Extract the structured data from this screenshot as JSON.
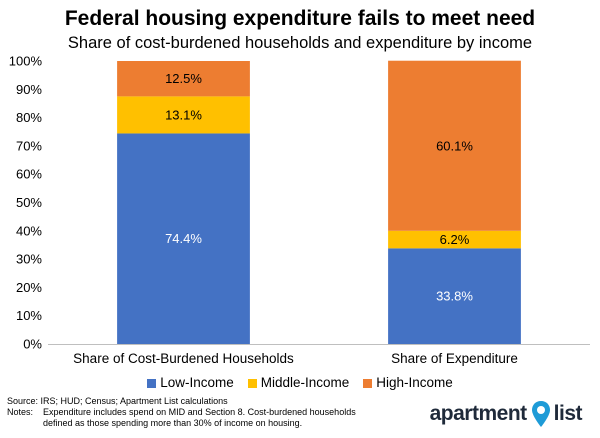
{
  "header": {
    "title": "Federal housing expenditure fails to meet need",
    "subtitle": "Share of cost-burdened households and expenditure by income"
  },
  "chart_data": {
    "type": "bar",
    "stacked": true,
    "categories": [
      "Share of Cost-Burdened Households",
      "Share of Expenditure"
    ],
    "series": [
      {
        "name": "Low-Income",
        "color": "#4472C4",
        "values": [
          74.4,
          33.8
        ],
        "labels": [
          "74.4%",
          "33.8%"
        ]
      },
      {
        "name": "Middle-Income",
        "color": "#FFC000",
        "values": [
          13.1,
          6.2
        ],
        "labels": [
          "13.1%",
          "6.2%"
        ]
      },
      {
        "name": "High-Income",
        "color": "#ED7D31",
        "values": [
          12.5,
          60.1
        ],
        "labels": [
          "12.5%",
          "60.1%"
        ]
      }
    ],
    "yticks": [
      "0%",
      "10%",
      "20%",
      "30%",
      "40%",
      "50%",
      "60%",
      "70%",
      "80%",
      "90%",
      "100%"
    ],
    "ylim": [
      0,
      100
    ],
    "legend_position": "bottom"
  },
  "legend": {
    "items": [
      {
        "label": "Low-Income",
        "color": "#4472C4"
      },
      {
        "label": "Middle-Income",
        "color": "#FFC000"
      },
      {
        "label": "High-Income",
        "color": "#ED7D31"
      }
    ]
  },
  "footer": {
    "source": "Source: IRS; HUD; Census; Apartment List calculations",
    "notes_label": "Notes:",
    "notes_text": "Expenditure includes spend on MID and Section 8. Cost-burdened households defined as those spending more than 30% of income on housing.",
    "logo_left": "apartment",
    "logo_right": "list",
    "logo_color": "#1e9bd7"
  }
}
